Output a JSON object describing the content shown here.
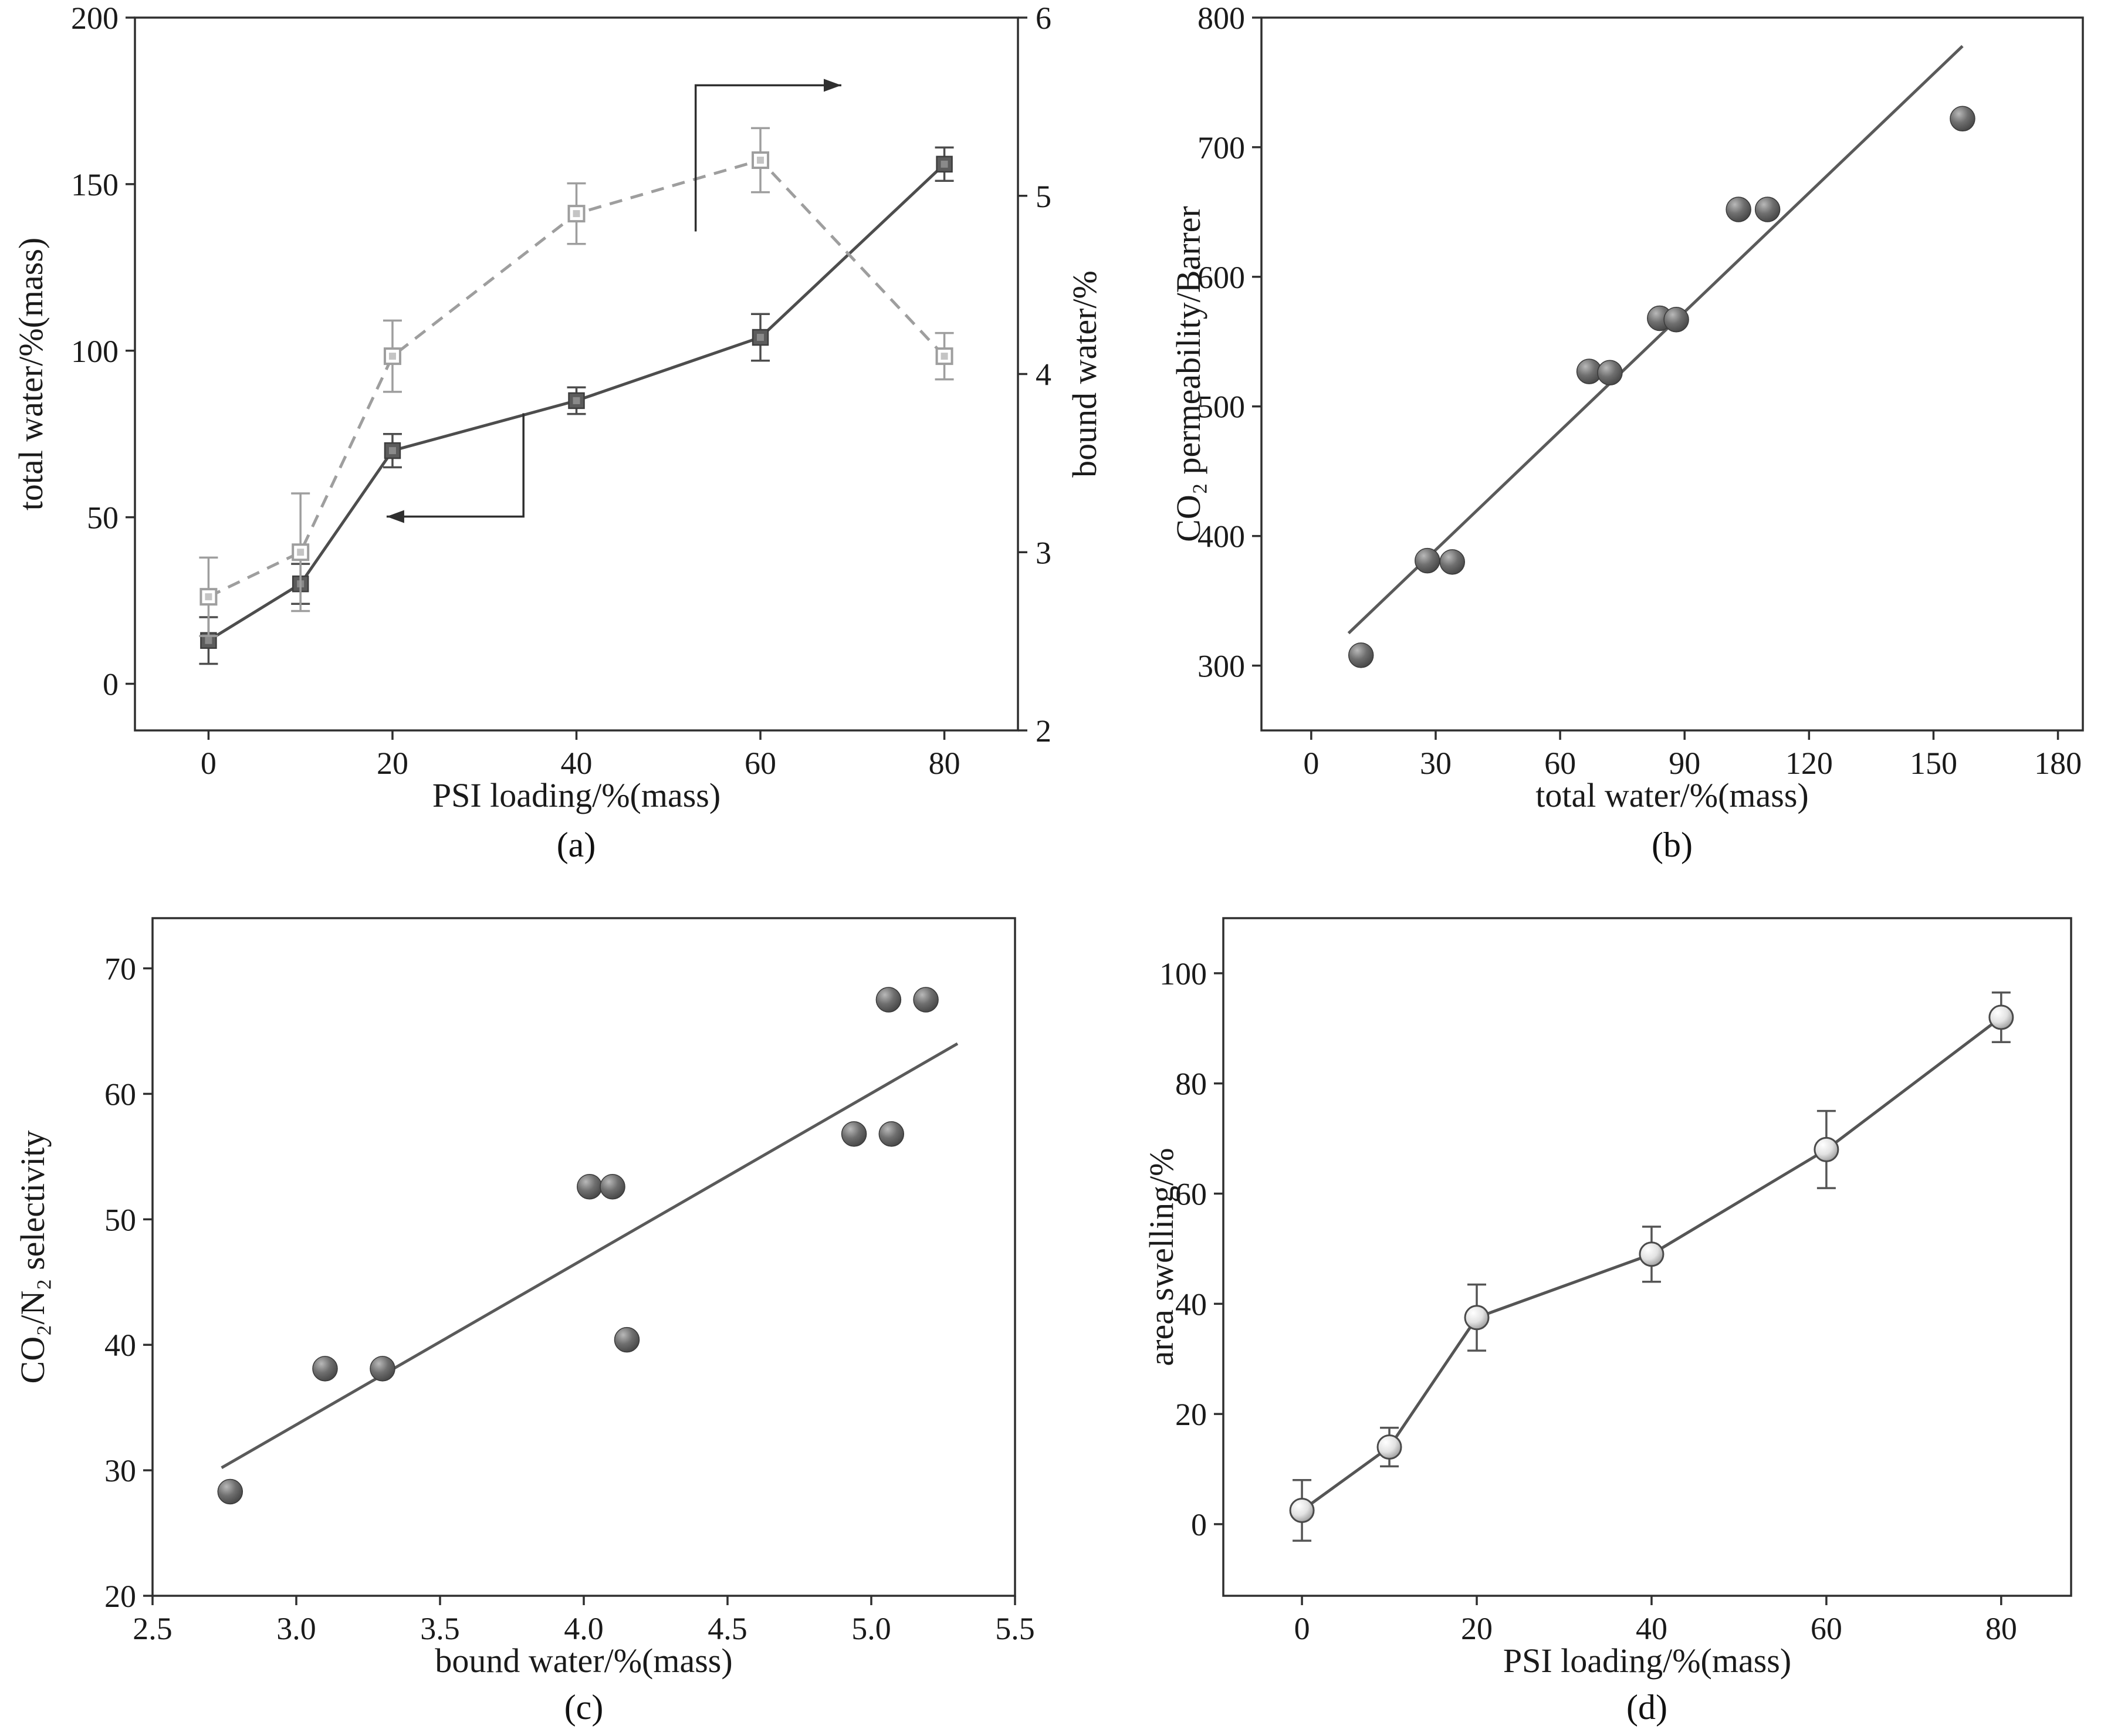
{
  "figure": {
    "background": "#ffffff",
    "axis_color": "#2f2f2f",
    "text_color": "#1a1a1a"
  },
  "chart_data": [
    {
      "id": "a",
      "caption": "(a)",
      "type": "line",
      "xlabel": "PSI loading/%(mass)",
      "ylabel": "total water/%(mass)",
      "ylabel_right": "bound water/%",
      "xlim": [
        -8,
        88
      ],
      "xticks": [
        0,
        20,
        40,
        60,
        80
      ],
      "xtick_labels": [
        "0",
        "20",
        "40",
        "60",
        "80"
      ],
      "ylim": [
        -14,
        200
      ],
      "yticks": [
        0,
        50,
        100,
        150,
        200
      ],
      "ytick_labels": [
        "0",
        "50",
        "100",
        "150",
        "200"
      ],
      "ylim_right": [
        2,
        6
      ],
      "yticks_right": [
        2,
        3,
        4,
        5,
        6
      ],
      "ytick_labels_right": [
        "2",
        "3",
        "4",
        "5",
        "6"
      ],
      "grid": false,
      "series": [
        {
          "name": "total water",
          "axis": "left",
          "line": "solid",
          "marker": "square-filled",
          "color": "#4d4d4d",
          "x": [
            0,
            10,
            20,
            40,
            60,
            80
          ],
          "y": [
            13,
            30,
            70,
            85,
            104,
            156
          ],
          "yerr": [
            7,
            6,
            5,
            4,
            7,
            5
          ]
        },
        {
          "name": "bound water",
          "axis": "right",
          "line": "dashed",
          "marker": "square-open",
          "color": "#9e9e9e",
          "x": [
            0,
            10,
            20,
            40,
            60,
            80
          ],
          "y": [
            2.75,
            3.0,
            4.1,
            4.9,
            5.2,
            4.1
          ],
          "yerr": [
            0.22,
            0.33,
            0.2,
            0.17,
            0.18,
            0.13
          ]
        }
      ],
      "annotations": [
        {
          "type": "arrow",
          "points_frac": [
            [
              0.635,
              0.3
            ],
            [
              0.635,
              0.095
            ],
            [
              0.8,
              0.095
            ]
          ]
        },
        {
          "type": "arrow",
          "points_frac": [
            [
              0.44,
              0.555
            ],
            [
              0.44,
              0.7
            ],
            [
              0.285,
              0.7
            ]
          ]
        }
      ]
    },
    {
      "id": "b",
      "caption": "(b)",
      "type": "scatter",
      "xlabel": "total water/%(mass)",
      "ylabel": "CO₂ permeability/Barrer",
      "xlim": [
        -12,
        186
      ],
      "xticks": [
        0,
        30,
        60,
        90,
        120,
        150,
        180
      ],
      "xtick_labels": [
        "0",
        "30",
        "60",
        "90",
        "120",
        "150",
        "180"
      ],
      "ylim": [
        250,
        800
      ],
      "yticks": [
        300,
        400,
        500,
        600,
        700,
        800
      ],
      "ytick_labels": [
        "300",
        "400",
        "500",
        "600",
        "700",
        "800"
      ],
      "grid": false,
      "series": [
        {
          "name": "linear fit",
          "line": "solid",
          "marker": "none",
          "color": "#5a5a5a",
          "x": [
            9,
            157
          ],
          "y": [
            325,
            778
          ]
        },
        {
          "name": "data",
          "line": "none",
          "marker": "ball-dark",
          "color": "#4a4a4a",
          "x": [
            12,
            28,
            34,
            67,
            72,
            84,
            88,
            103,
            110,
            157
          ],
          "y": [
            308,
            381,
            380,
            527,
            526,
            568,
            567,
            652,
            652,
            722
          ]
        }
      ],
      "annotations": []
    },
    {
      "id": "c",
      "caption": "(c)",
      "type": "scatter",
      "xlabel": "bound water/%(mass)",
      "ylabel": "CO₂/N₂ selectivity",
      "xlim": [
        2.5,
        5.5
      ],
      "xticks": [
        2.5,
        3.0,
        3.5,
        4.0,
        4.5,
        5.0,
        5.5
      ],
      "xtick_labels": [
        "2.5",
        "3.0",
        "3.5",
        "4.0",
        "4.5",
        "5.0",
        "5.5"
      ],
      "ylim": [
        20,
        74
      ],
      "yticks": [
        20,
        30,
        40,
        50,
        60,
        70
      ],
      "ytick_labels": [
        "20",
        "30",
        "40",
        "50",
        "60",
        "70"
      ],
      "grid": false,
      "series": [
        {
          "name": "linear fit",
          "line": "solid",
          "marker": "none",
          "color": "#5a5a5a",
          "x": [
            2.74,
            5.3
          ],
          "y": [
            30.2,
            64
          ]
        },
        {
          "name": "data",
          "line": "none",
          "marker": "ball-dark",
          "color": "#4a4a4a",
          "x": [
            2.77,
            3.1,
            3.3,
            4.02,
            4.1,
            4.15,
            4.94,
            5.07,
            5.06,
            5.19
          ],
          "y": [
            28.3,
            38.1,
            38.1,
            52.6,
            52.6,
            40.4,
            56.8,
            56.8,
            67.5,
            67.5
          ]
        }
      ],
      "annotations": []
    },
    {
      "id": "d",
      "caption": "(d)",
      "type": "line",
      "xlabel": "PSI loading/%(mass)",
      "ylabel": "area swelling/%",
      "xlim": [
        -9,
        88
      ],
      "xticks": [
        0,
        20,
        40,
        60,
        80
      ],
      "xtick_labels": [
        "0",
        "20",
        "40",
        "60",
        "80"
      ],
      "ylim": [
        -13,
        110
      ],
      "yticks": [
        0,
        20,
        40,
        60,
        80,
        100
      ],
      "ytick_labels": [
        "0",
        "20",
        "40",
        "60",
        "80",
        "100"
      ],
      "grid": false,
      "series": [
        {
          "name": "area swelling",
          "axis": "left",
          "line": "solid",
          "marker": "ball-light",
          "color": "#555555",
          "x": [
            0,
            10,
            20,
            40,
            60,
            80
          ],
          "y": [
            2.5,
            14,
            37.5,
            49,
            68,
            92
          ],
          "yerr": [
            5.5,
            3.5,
            6,
            5,
            7,
            4.5
          ]
        }
      ],
      "annotations": []
    }
  ]
}
